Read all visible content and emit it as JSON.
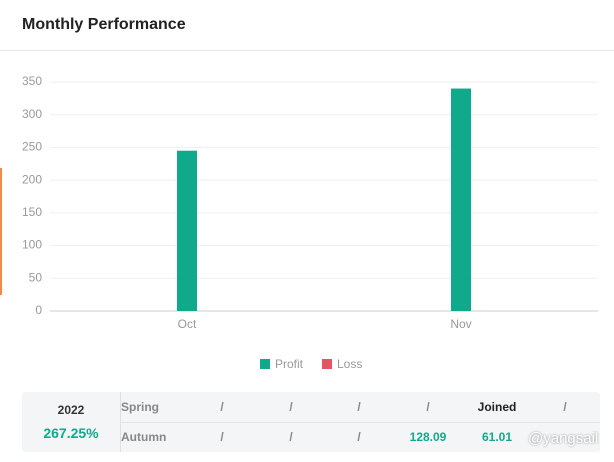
{
  "header": {
    "title": "Monthly Performance"
  },
  "chart_data": {
    "type": "bar",
    "categories": [
      "Oct",
      "Nov"
    ],
    "series": [
      {
        "name": "Profit",
        "color": "#10a98b",
        "values": [
          245,
          340
        ]
      },
      {
        "name": "Loss",
        "color": "#e25563",
        "values": [
          null,
          null
        ]
      }
    ],
    "ylim": [
      0,
      350
    ],
    "yticks": [
      0,
      50,
      100,
      150,
      200,
      250,
      300,
      350
    ],
    "grid": true
  },
  "table": {
    "year": "2022",
    "total": "267.25%",
    "rows": [
      [
        "Spring",
        "/",
        "/",
        "/",
        "/",
        "Joined",
        "/"
      ],
      [
        "Autumn",
        "/",
        "/",
        "/",
        "128.09",
        "61.01"
      ]
    ]
  },
  "watermark": "@yangsail"
}
